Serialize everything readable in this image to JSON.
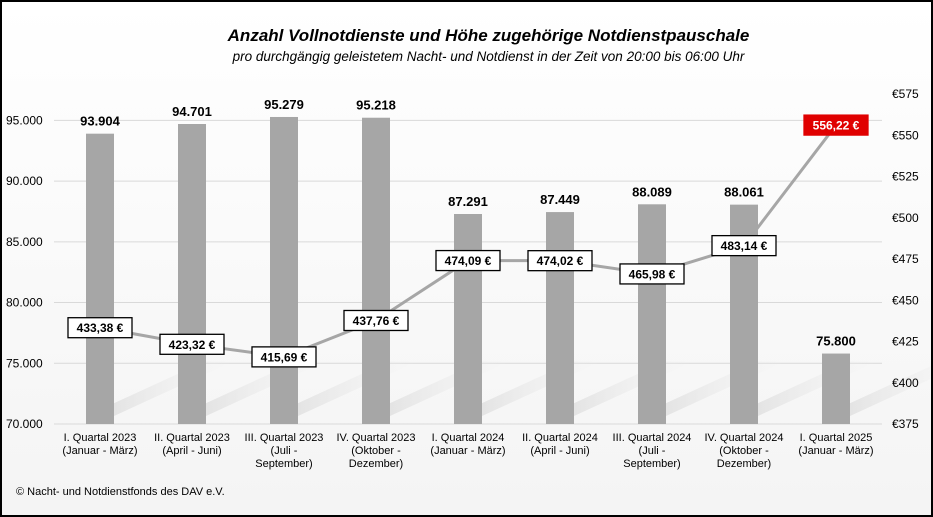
{
  "chart_data": {
    "type": "bar",
    "title": "Anzahl Vollnotdienste und Höhe zugehörige Notdienstpauschale",
    "subtitle": "pro durchgängig geleistetem Nacht- und Notdienst in der Zeit von 20:00 bis 06:00 Uhr",
    "categories": [
      [
        "I. Quartal 2023",
        "(Januar - März)"
      ],
      [
        "II. Quartal 2023",
        "(April - Juni)"
      ],
      [
        "III. Quartal 2023",
        "(Juli -",
        "September)"
      ],
      [
        "IV. Quartal 2023",
        "(Oktober -",
        "Dezember)"
      ],
      [
        "I. Quartal 2024",
        "(Januar - März)"
      ],
      [
        "II. Quartal 2024",
        "(April - Juni)"
      ],
      [
        "III. Quartal 2024",
        "(Juli -",
        "September)"
      ],
      [
        "IV. Quartal 2024",
        "(Oktober -",
        "Dezember)"
      ],
      [
        "I. Quartal 2025",
        "(Januar - März)"
      ]
    ],
    "series": [
      {
        "axis": "left",
        "kind": "bar",
        "values": [
          93904,
          94701,
          95279,
          95218,
          87291,
          87449,
          88089,
          88061,
          75800
        ],
        "labels": [
          "93.904",
          "94.701",
          "95.279",
          "95.218",
          "87.291",
          "87.449",
          "88.089",
          "88.061",
          "75.800"
        ],
        "color": "#a6a6a6"
      },
      {
        "axis": "right",
        "kind": "line",
        "values": [
          433.38,
          423.32,
          415.69,
          437.76,
          474.09,
          474.02,
          465.98,
          483.14,
          556.22
        ],
        "labels": [
          "433,38 €",
          "423,32 €",
          "415,69 €",
          "437,76 €",
          "474,09 €",
          "474,02 €",
          "465,98 €",
          "483,14 €",
          "556,22 €"
        ],
        "color": "#a6a6a6",
        "highlight_color": "#e00000",
        "highlight_index": 8
      }
    ],
    "y_left": {
      "lim": [
        70000,
        97500
      ],
      "ticks": [
        70000,
        75000,
        80000,
        85000,
        90000,
        95000
      ],
      "tick_labels": [
        "70.000",
        "75.000",
        "80.000",
        "85.000",
        "90.000",
        "95.000"
      ]
    },
    "y_right": {
      "lim": [
        375,
        577.5
      ],
      "ticks": [
        375,
        400,
        425,
        450,
        475,
        500,
        525,
        550,
        575
      ],
      "tick_labels": [
        "€375",
        "€400",
        "€425",
        "€450",
        "€475",
        "€500",
        "€525",
        "€550",
        "€575"
      ]
    },
    "grid": true
  },
  "footer": {
    "copyright": "© Nacht- und Notdienstfonds des DAV e.V."
  }
}
